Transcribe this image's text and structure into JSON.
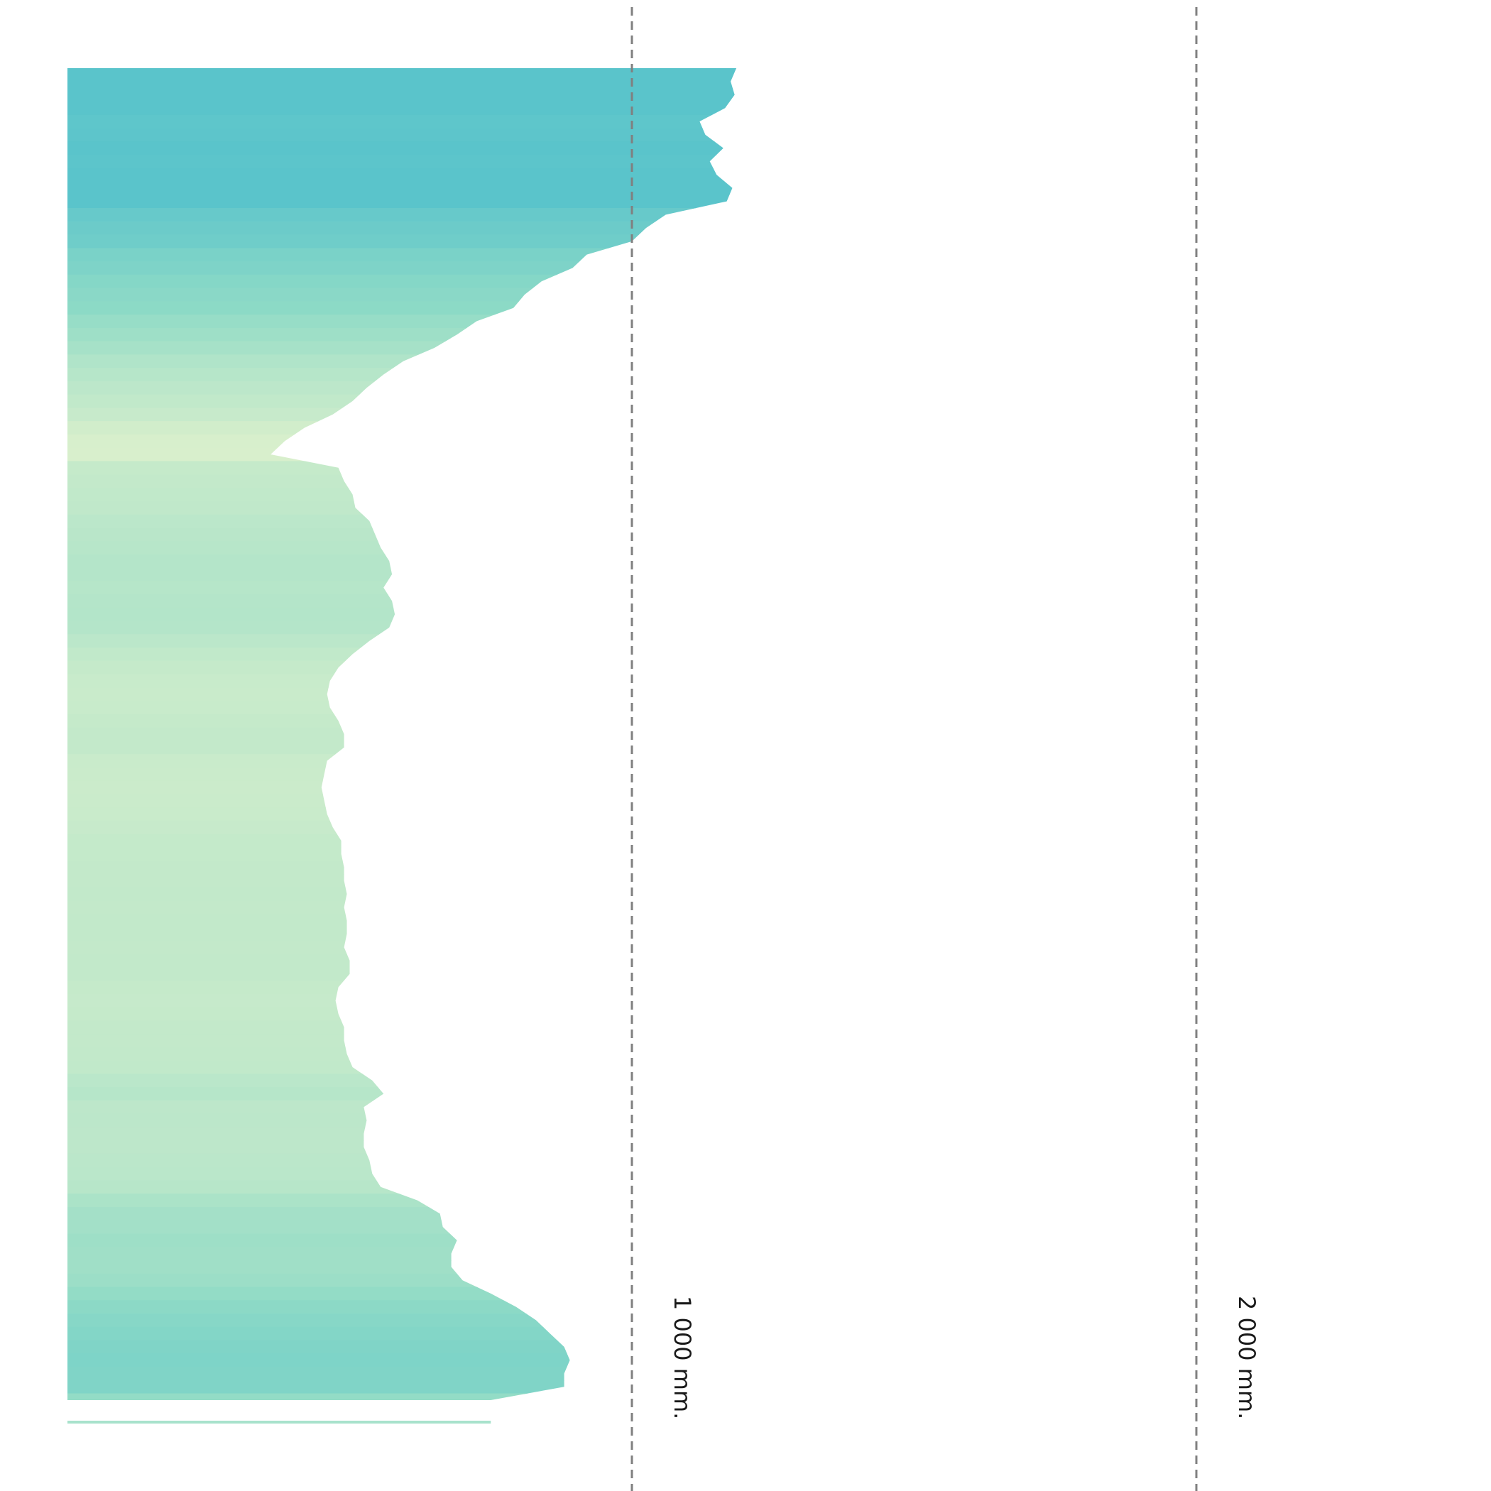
{
  "chart_data": {
    "type": "area",
    "orientation": "horizontal-profile",
    "title": "",
    "xlabel": "",
    "ylabel": "",
    "xlim": [
      0,
      2500
    ],
    "grid": false,
    "reference_lines": [
      {
        "value": 1000,
        "label": "1 000 mm."
      },
      {
        "value": 2000,
        "label": "2 000 mm."
      }
    ],
    "y_index": [
      0,
      1,
      2,
      3,
      4,
      5,
      6,
      7,
      8,
      9,
      10,
      11,
      12,
      13,
      14,
      15,
      16,
      17,
      18,
      19,
      20,
      21,
      22,
      23,
      24,
      25,
      26,
      27,
      28,
      29,
      30,
      31,
      32,
      33,
      34,
      35,
      36,
      37,
      38,
      39,
      40,
      41,
      42,
      43,
      44,
      45,
      46,
      47,
      48,
      49,
      50,
      51,
      52,
      53,
      54,
      55,
      56,
      57,
      58,
      59,
      60,
      61,
      62,
      63,
      64,
      65,
      66,
      67,
      68,
      69,
      70,
      71,
      72,
      73,
      74,
      75,
      76,
      77,
      78,
      79,
      80,
      81,
      82,
      83,
      84,
      85,
      86,
      87,
      88,
      89,
      90,
      91,
      92,
      93,
      94,
      95,
      96,
      97,
      98,
      99,
      100
    ],
    "values": [
      1185,
      1175,
      1182,
      1165,
      1120,
      1130,
      1162,
      1138,
      1150,
      1178,
      1168,
      1060,
      1025,
      1000,
      920,
      895,
      840,
      810,
      790,
      725,
      690,
      650,
      595,
      560,
      530,
      505,
      470,
      420,
      385,
      360,
      480,
      490,
      505,
      510,
      535,
      545,
      555,
      570,
      575,
      560,
      575,
      580,
      570,
      535,
      505,
      480,
      465,
      460,
      465,
      480,
      490,
      490,
      460,
      455,
      450,
      455,
      460,
      470,
      485,
      485,
      490,
      490,
      495,
      490,
      495,
      495,
      490,
      500,
      500,
      480,
      475,
      480,
      490,
      490,
      495,
      505,
      540,
      560,
      525,
      530,
      525,
      525,
      535,
      540,
      555,
      620,
      660,
      665,
      690,
      680,
      680,
      700,
      750,
      795,
      830,
      855,
      880,
      890,
      880,
      880,
      750
    ],
    "colors": {
      "high": "#5ac4cb",
      "mid": "#90dbc6",
      "low": "#d8efcc",
      "reference_line": "#808080",
      "baseline_bar": "#a8e2cc"
    },
    "baseline_bar_value": 750
  }
}
